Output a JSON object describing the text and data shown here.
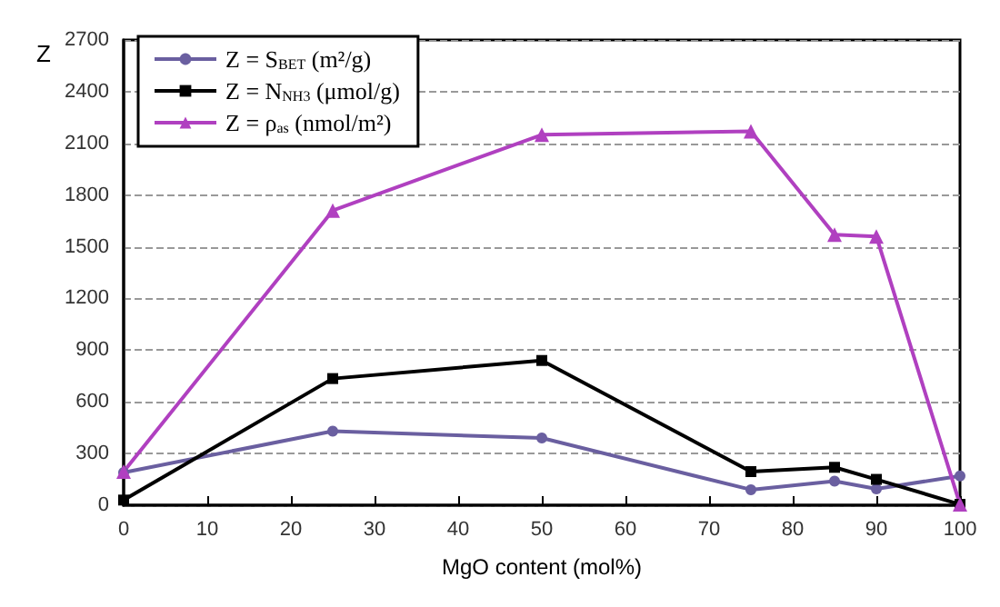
{
  "chart_data": {
    "type": "line",
    "xlabel": "MgO content (mol%)",
    "ylabel": "Z",
    "x": [
      0,
      25,
      50,
      75,
      85,
      90,
      100
    ],
    "series": [
      {
        "name": "Z = S$_{BET}$ (m²/g)",
        "color": "#6a5fa0",
        "marker": "circle",
        "values": [
          190,
          430,
          390,
          90,
          140,
          95,
          170
        ]
      },
      {
        "name": "Z = N$_{NH3}$ (μmol/g)",
        "color": "#000000",
        "marker": "square",
        "values": [
          30,
          735,
          840,
          195,
          220,
          150,
          5
        ]
      },
      {
        "name": "Z = ρ$_{as}$ (nmol/m²)",
        "color": "#b040c0",
        "marker": "triangle",
        "values": [
          195,
          1710,
          2150,
          2170,
          1570,
          1560,
          5
        ]
      }
    ],
    "xlim": [
      0,
      100
    ],
    "xticks": [
      0,
      10,
      20,
      30,
      40,
      50,
      60,
      70,
      80,
      90,
      100
    ],
    "ylim": [
      0,
      2700
    ],
    "yticks": [
      0,
      300,
      600,
      900,
      1200,
      1500,
      1800,
      2100,
      2400,
      2700
    ],
    "grid": "y",
    "legend": "top left",
    "line_style": "solid"
  }
}
